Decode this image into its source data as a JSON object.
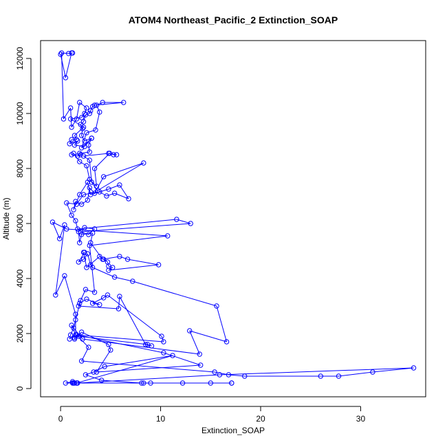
{
  "chart_data": {
    "type": "line",
    "title": "ATOM4 Northeast_Pacific_2 Extinction_SOAP",
    "xlabel": "Extinction_SOAP",
    "ylabel": "Altitude (m)",
    "xlim": [
      -2,
      36.5
    ],
    "ylim": [
      -300,
      12650
    ],
    "x_ticks": [
      0,
      10,
      20,
      30
    ],
    "y_ticks": [
      0,
      2000,
      4000,
      6000,
      8000,
      10000,
      12000
    ],
    "grid": false,
    "legend": "none",
    "series_color": "#0000ff",
    "series": [
      {
        "x": [
          0.0,
          0.5,
          1.1,
          1.2,
          0.8,
          0.1,
          0.3,
          1.0,
          1.1,
          1.6,
          1.9,
          2.6,
          2.4,
          2.1,
          1.0,
          2.3,
          1.4,
          1.6,
          1.1,
          0.9,
          1.7,
          1.4,
          2.4,
          3.1,
          2.1,
          2.6,
          3.5,
          3.9,
          3.6,
          4.2,
          6.3,
          3.4,
          3.2,
          3.0,
          2.9,
          2.5,
          2.3,
          2.0,
          2.2,
          2.1,
          2.4,
          3.1,
          2.8,
          2.9,
          1.9,
          2.0,
          1.7,
          1.1,
          1.3,
          1.9,
          2.6,
          2.9,
          3.6,
          3.4,
          4.9,
          5.3,
          5.6,
          4.8,
          2.3,
          2.9,
          3.1,
          3.7,
          8.3,
          4.3,
          3.4,
          2.9,
          2.7,
          2.1,
          1.5,
          1.3,
          1.9,
          2.7,
          3.0,
          4.8,
          5.9,
          6.8,
          5.4,
          4.6,
          3.9,
          2.3,
          1.6,
          0.6,
          1.1,
          1.5,
          1.7,
          11.6,
          13.0,
          2.0,
          2.8,
          3.4,
          2.4,
          1.8,
          1.9,
          2.1,
          3.2,
          3.0,
          4.2,
          5.9,
          6.7,
          9.8,
          4.8,
          5.2,
          4.8,
          4.7,
          4.3,
          3.9,
          2.6,
          2.3,
          2.4,
          1.8,
          2.3,
          2.7,
          3.0,
          3.2,
          5.4,
          7.2,
          15.6,
          16.6,
          12.9,
          13.9,
          2.2,
          1.1,
          1.5,
          1.5,
          0.4,
          -0.5,
          0.4,
          -0.1,
          -0.8,
          0.6,
          10.7,
          2.9,
          3.4,
          2.5,
          2.0,
          1.5,
          1.3,
          1.0,
          0.9,
          1.6,
          10.3,
          10.1,
          4.7,
          4.3,
          3.2,
          3.9,
          2.6,
          1.9,
          1.8,
          5.8,
          5.9,
          8.5,
          9.1,
          8.7,
          1.8,
          1.4,
          1.4,
          2.1,
          4.8,
          5.0,
          3.6,
          14.0,
          10.3,
          1.6,
          2.8,
          2.1,
          15.4,
          16.8,
          18.4,
          26.0,
          27.8,
          31.2,
          35.3,
          15.9,
          1.7,
          0.5,
          1.2,
          1.6,
          17.1,
          17.1,
          15.0,
          12.2,
          9.0,
          8.3,
          8.1,
          4.1,
          2.5,
          3.3,
          4.4,
          11.2,
          1.6,
          1.3,
          1.2,
          1.4
        ],
        "y": [
          12150,
          11300,
          12200,
          12200,
          12180,
          12200,
          9800,
          10200,
          9500,
          9800,
          10400,
          10200,
          10000,
          9850,
          9800,
          9500,
          9200,
          9050,
          9050,
          8900,
          9000,
          8850,
          8800,
          9100,
          8750,
          9300,
          9400,
          10050,
          10300,
          10400,
          10400,
          10300,
          10250,
          10100,
          10000,
          9950,
          9700,
          9600,
          9450,
          9200,
          9000,
          9100,
          8850,
          8600,
          8550,
          8500,
          8450,
          8500,
          8550,
          8250,
          8100,
          7600,
          7350,
          8000,
          8550,
          8500,
          8500,
          8550,
          8450,
          8300,
          7500,
          7200,
          8200,
          7700,
          7100,
          7300,
          6850,
          6700,
          6800,
          6500,
          7050,
          7500,
          7050,
          7250,
          7400,
          6900,
          7100,
          7000,
          7150,
          7050,
          6700,
          6750,
          6300,
          6100,
          5800,
          6150,
          6000,
          5700,
          5600,
          5800,
          5850,
          5700,
          5300,
          5600,
          5650,
          5300,
          4700,
          4800,
          4700,
          4500,
          4300,
          4400,
          4450,
          4600,
          4700,
          4800,
          4400,
          4950,
          4950,
          4600,
          4700,
          4900,
          4500,
          4400,
          4050,
          3900,
          3000,
          1700,
          2100,
          1250,
          1800,
          2300,
          1950,
          2700,
          4100,
          3400,
          5950,
          5450,
          6050,
          5800,
          5550,
          5200,
          3500,
          3600,
          3200,
          2500,
          2200,
          1950,
          1800,
          1950,
          1700,
          1900,
          3400,
          3300,
          3100,
          3050,
          3250,
          3100,
          3000,
          2900,
          3350,
          1600,
          1550,
          1600,
          1900,
          1800,
          1850,
          2050,
          1600,
          1400,
          600,
          850,
          1300,
          1950,
          1500,
          1000,
          600,
          500,
          450,
          450,
          450,
          600,
          750,
          500,
          200,
          200,
          250,
          200,
          200,
          200,
          200,
          200,
          200,
          200,
          200,
          300,
          500,
          600,
          800,
          1200,
          200,
          200,
          200,
          200
        ]
      }
    ]
  }
}
